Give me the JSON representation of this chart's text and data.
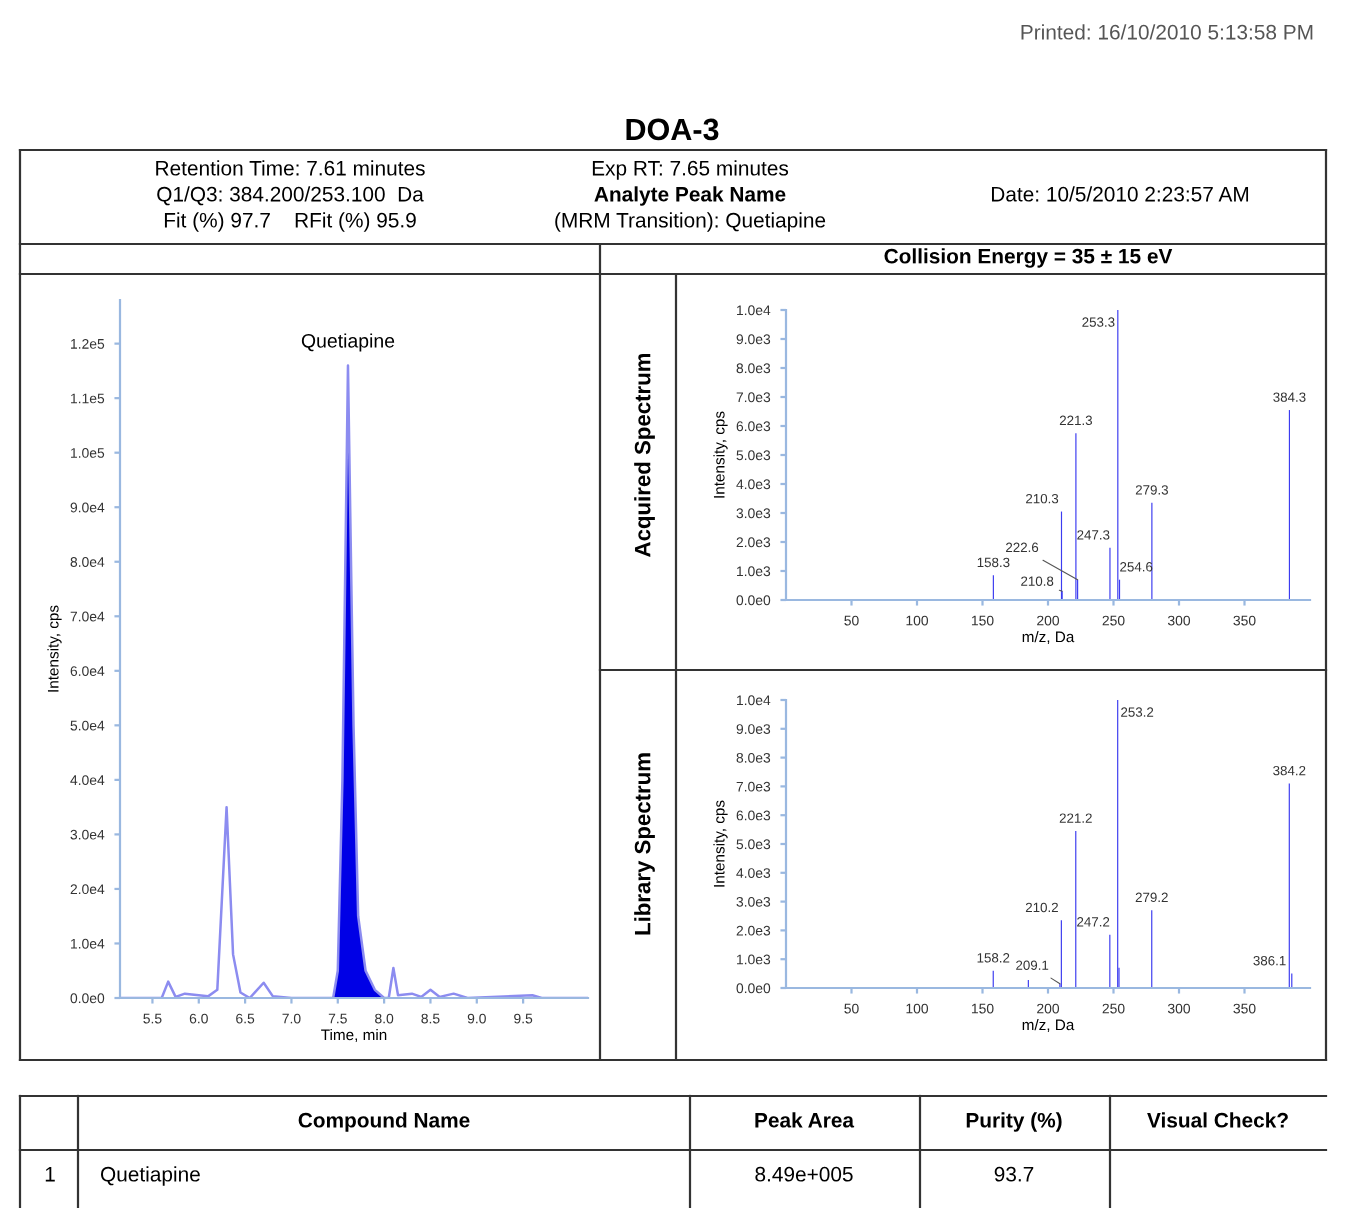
{
  "chart_data": [
    {
      "type": "other",
      "title": "DOA-3",
      "annotations": [
        "Printed: 16/10/2010 5:13:58 PM",
        "Retention Time: 7.61 minutes",
        "Q1/Q3: 384.200/253.100  Da",
        "Fit (%) 97.7    RFit (%) 95.9",
        "Exp RT: 7.65 minutes",
        "Analyte Peak Name",
        "(MRM Transition): Quetiapine",
        "Date: 10/5/2010 2:23:57 AM",
        "Collision Energy = 35 ± 15 eV",
        "Compound Name",
        "Peak Area",
        "Purity (%)",
        "Visual Check?",
        "1",
        "Quetiapine",
        "8.49e+005",
        "93.7"
      ]
    },
    {
      "type": "line",
      "xlabel": "Time, min",
      "ylabel": "Intensity, cps",
      "xlim": [
        5.15,
        10.2
      ],
      "ylim": [
        0,
        128000
      ],
      "xticks": [
        {
          "value": 5.5,
          "label": "5.5"
        },
        {
          "value": 6.0,
          "label": "6.0"
        },
        {
          "value": 6.5,
          "label": "6.5"
        },
        {
          "value": 7.0,
          "label": "7.0"
        },
        {
          "value": 7.5,
          "label": "7.5"
        },
        {
          "value": 8.0,
          "label": "8.0"
        },
        {
          "value": 8.5,
          "label": "8.5"
        },
        {
          "value": 9.0,
          "label": "9.0"
        },
        {
          "value": 9.5,
          "label": "9.5"
        }
      ],
      "yticks": [
        {
          "value": 0,
          "label": "0.0e0"
        },
        {
          "value": 10000,
          "label": "1.0e4"
        },
        {
          "value": 20000,
          "label": "2.0e4"
        },
        {
          "value": 30000,
          "label": "3.0e4"
        },
        {
          "value": 40000,
          "label": "4.0e4"
        },
        {
          "value": 50000,
          "label": "5.0e4"
        },
        {
          "value": 60000,
          "label": "6.0e4"
        },
        {
          "value": 70000,
          "label": "7.0e4"
        },
        {
          "value": 80000,
          "label": "8.0e4"
        },
        {
          "value": 90000,
          "label": "9.0e4"
        },
        {
          "value": 100000,
          "label": "1.0e5"
        },
        {
          "value": 110000,
          "label": "1.1e5"
        },
        {
          "value": 120000,
          "label": "1.2e5"
        }
      ],
      "series": [
        {
          "type": "line",
          "color": "#8c8cf0",
          "x": [
            5.15,
            5.6,
            5.67,
            5.75,
            5.85,
            6.0,
            6.1,
            6.2,
            6.3,
            6.37,
            6.45,
            6.55,
            6.7,
            6.8,
            7.0,
            7.4,
            7.45,
            7.5,
            7.55,
            7.61,
            7.67,
            7.72,
            7.8,
            7.9,
            8.0,
            8.05,
            8.1,
            8.15,
            8.3,
            8.4,
            8.5,
            8.6,
            8.75,
            8.9,
            9.6,
            9.7,
            10.2
          ],
          "values": [
            0,
            0,
            3000,
            200,
            800,
            500,
            300,
            1500,
            35000,
            8000,
            1000,
            0,
            2800,
            300,
            0,
            0,
            0,
            5000,
            40000,
            116000,
            50000,
            15000,
            5000,
            1500,
            0,
            0,
            5500,
            500,
            800,
            200,
            1500,
            200,
            800,
            0,
            500,
            0,
            0
          ]
        },
        {
          "type": "area",
          "color": "#0000e6",
          "x": [
            7.45,
            7.5,
            7.55,
            7.61,
            7.67,
            7.72,
            7.8,
            7.9,
            8.0
          ],
          "values": [
            0,
            5000,
            40000,
            116000,
            50000,
            15000,
            5000,
            1500,
            0
          ]
        }
      ],
      "annotations": [
        {
          "text": "Quetiapine",
          "x": 7.61,
          "y": 116000
        }
      ]
    },
    {
      "type": "bar",
      "title": "Acquired Spectrum",
      "xlabel": "m/z, Da",
      "ylabel": "Intensity, cps",
      "color": "#3c3cf0",
      "xlim": [
        0,
        400
      ],
      "ylim": [
        0,
        10000
      ],
      "xticks": [
        50,
        100,
        150,
        200,
        250,
        300,
        350
      ],
      "yticks": [
        {
          "value": 0,
          "label": "0.0e0"
        },
        {
          "value": 1000,
          "label": "1.0e3"
        },
        {
          "value": 2000,
          "label": "2.0e3"
        },
        {
          "value": 3000,
          "label": "3.0e3"
        },
        {
          "value": 4000,
          "label": "4.0e3"
        },
        {
          "value": 5000,
          "label": "5.0e3"
        },
        {
          "value": 6000,
          "label": "6.0e3"
        },
        {
          "value": 7000,
          "label": "7.0e3"
        },
        {
          "value": 8000,
          "label": "8.0e3"
        },
        {
          "value": 9000,
          "label": "9.0e3"
        },
        {
          "value": 10000,
          "label": "1.0e4"
        }
      ],
      "x": [
        158.3,
        210.3,
        210.8,
        221.3,
        222.6,
        247.3,
        253.3,
        254.6,
        279.3,
        384.3
      ],
      "values": [
        850,
        3050,
        300,
        5750,
        700,
        1800,
        10000,
        700,
        3350,
        6550
      ],
      "annotations": [
        {
          "text": "158.3",
          "x": 158.3,
          "y": 850
        },
        {
          "text": "210.3",
          "x": 210.3,
          "y": 3050
        },
        {
          "text": "210.8",
          "x": 210.8,
          "y": 300
        },
        {
          "text": "221.3",
          "x": 221.3,
          "y": 5750
        },
        {
          "text": "222.6",
          "x": 222.6,
          "y": 700
        },
        {
          "text": "247.3",
          "x": 247.3,
          "y": 1800
        },
        {
          "text": "253.3",
          "x": 253.3,
          "y": 10000
        },
        {
          "text": "254.6",
          "x": 254.6,
          "y": 700
        },
        {
          "text": "279.3",
          "x": 279.3,
          "y": 3350
        },
        {
          "text": "384.3",
          "x": 384.3,
          "y": 6550
        }
      ]
    },
    {
      "type": "bar",
      "title": "Library Spectrum",
      "xlabel": "m/z, Da",
      "ylabel": "Intensity, cps",
      "color": "#3c3cf0",
      "xlim": [
        0,
        400
      ],
      "ylim": [
        0,
        10000
      ],
      "xticks": [
        50,
        100,
        150,
        200,
        250,
        300,
        350
      ],
      "yticks": [
        {
          "value": 0,
          "label": "0.0e0"
        },
        {
          "value": 1000,
          "label": "1.0e3"
        },
        {
          "value": 2000,
          "label": "2.0e3"
        },
        {
          "value": 3000,
          "label": "3.0e3"
        },
        {
          "value": 4000,
          "label": "4.0e3"
        },
        {
          "value": 5000,
          "label": "5.0e3"
        },
        {
          "value": 6000,
          "label": "6.0e3"
        },
        {
          "value": 7000,
          "label": "7.0e3"
        },
        {
          "value": 8000,
          "label": "8.0e3"
        },
        {
          "value": 9000,
          "label": "9.0e3"
        },
        {
          "value": 10000,
          "label": "1.0e4"
        }
      ],
      "x": [
        158.2,
        185,
        209.1,
        210.2,
        221.2,
        247.2,
        253.2,
        254.2,
        279.2,
        384.2,
        386.1
      ],
      "values": [
        600,
        280,
        150,
        2350,
        5450,
        1850,
        10000,
        700,
        2700,
        7100,
        500
      ],
      "annotations": [
        {
          "text": "158.2",
          "x": 158.2,
          "y": 600
        },
        {
          "text": "209.1",
          "x": 209.1,
          "y": 150
        },
        {
          "text": "210.2",
          "x": 210.2,
          "y": 2350
        },
        {
          "text": "221.2",
          "x": 221.2,
          "y": 5450
        },
        {
          "text": "247.2",
          "x": 247.2,
          "y": 1850
        },
        {
          "text": "253.2",
          "x": 253.2,
          "y": 10000
        },
        {
          "text": "279.2",
          "x": 279.2,
          "y": 2700
        },
        {
          "text": "384.2",
          "x": 384.2,
          "y": 7100
        },
        {
          "text": "386.1",
          "x": 386.1,
          "y": 500
        }
      ]
    }
  ]
}
